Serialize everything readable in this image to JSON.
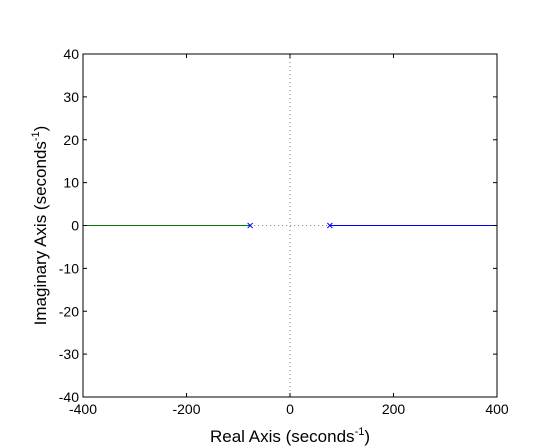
{
  "chart_data": {
    "type": "line",
    "title": "",
    "xlabel": "Real Axis (seconds",
    "xlabel_sup": "-1",
    "xlabel_suffix": ")",
    "ylabel": "Imaginary Axis (seconds",
    "ylabel_sup": "-1",
    "ylabel_suffix": ")",
    "xlim": [
      -400,
      400
    ],
    "ylim": [
      -40,
      40
    ],
    "x_ticks": [
      -400,
      -200,
      0,
      200,
      400
    ],
    "y_ticks": [
      -40,
      -30,
      -20,
      -10,
      0,
      10,
      20,
      30,
      40
    ],
    "grid": false,
    "legend": false,
    "series": [
      {
        "color": "#008000",
        "x": [
          -77,
          -400
        ],
        "y": [
          0,
          0
        ]
      },
      {
        "color": "#0000ff",
        "x": [
          77,
          400
        ],
        "y": [
          0,
          0
        ]
      }
    ],
    "poles": [
      {
        "x": -77,
        "y": 0,
        "color": "#0000ff"
      },
      {
        "x": 77,
        "y": 0,
        "color": "#0000ff"
      }
    ],
    "guide_lines": {
      "color": "#808080",
      "style": "dotted",
      "vertical_at_x": 0,
      "horizontal_segment": {
        "x": [
          -77,
          77
        ],
        "y": 0
      }
    }
  }
}
